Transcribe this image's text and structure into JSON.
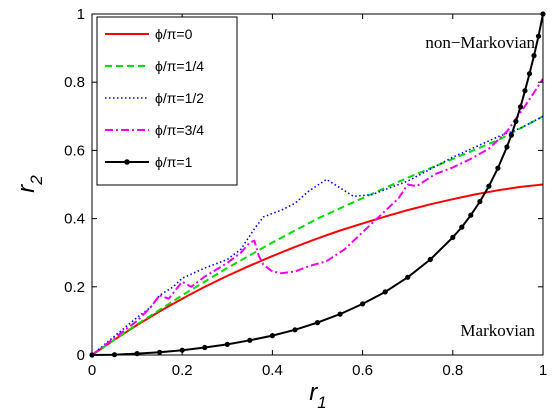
{
  "chart_data": {
    "type": "line",
    "title": "",
    "xlabel": "r₁",
    "ylabel": "r₂",
    "xlim": [
      0,
      1
    ],
    "ylim": [
      0,
      1
    ],
    "xticks": [
      "0",
      "0.2",
      "0.4",
      "0.6",
      "0.8",
      "1"
    ],
    "yticks": [
      "0",
      "0.2",
      "0.4",
      "0.6",
      "0.8",
      "1"
    ],
    "grid": false,
    "legend_position": "top-left",
    "annotations": [
      "non−Markovian",
      "Markovian"
    ],
    "series": [
      {
        "name": "ϕ/π=0",
        "color": "#ff0000",
        "style": "solid",
        "x": [
          0,
          0.05,
          0.1,
          0.15,
          0.2,
          0.25,
          0.3,
          0.35,
          0.4,
          0.45,
          0.5,
          0.55,
          0.6,
          0.65,
          0.7,
          0.75,
          0.8,
          0.85,
          0.9,
          0.95,
          1.0
        ],
        "y": [
          0,
          0.045,
          0.088,
          0.128,
          0.165,
          0.2,
          0.232,
          0.262,
          0.29,
          0.317,
          0.342,
          0.365,
          0.386,
          0.406,
          0.425,
          0.442,
          0.457,
          0.471,
          0.483,
          0.493,
          0.5
        ]
      },
      {
        "name": "ϕ/π=1/4",
        "color": "#00dd00",
        "style": "dashed",
        "x": [
          0,
          0.1,
          0.2,
          0.3,
          0.4,
          0.5,
          0.6,
          0.7,
          0.8,
          0.9,
          1.0
        ],
        "y": [
          0,
          0.09,
          0.175,
          0.255,
          0.33,
          0.4,
          0.46,
          0.52,
          0.575,
          0.63,
          0.7
        ]
      },
      {
        "name": "ϕ/π=1/2",
        "color": "#0000ff",
        "style": "dotted",
        "x": [
          0,
          0.05,
          0.1,
          0.13,
          0.15,
          0.18,
          0.2,
          0.25,
          0.3,
          0.33,
          0.36,
          0.38,
          0.42,
          0.45,
          0.48,
          0.52,
          0.55,
          0.58,
          0.62,
          0.65,
          0.7,
          0.75,
          0.8,
          0.85,
          0.9,
          0.95,
          1.0
        ],
        "y": [
          0,
          0.055,
          0.11,
          0.14,
          0.175,
          0.2,
          0.225,
          0.255,
          0.28,
          0.31,
          0.37,
          0.405,
          0.425,
          0.445,
          0.48,
          0.515,
          0.49,
          0.465,
          0.47,
          0.485,
          0.51,
          0.545,
          0.58,
          0.61,
          0.64,
          0.665,
          0.7
        ]
      },
      {
        "name": "ϕ/π=3/4",
        "color": "#ee00ee",
        "style": "dashdot",
        "x": [
          0,
          0.05,
          0.1,
          0.13,
          0.15,
          0.17,
          0.2,
          0.22,
          0.25,
          0.3,
          0.33,
          0.35,
          0.36,
          0.37,
          0.38,
          0.4,
          0.42,
          0.45,
          0.48,
          0.52,
          0.56,
          0.6,
          0.64,
          0.68,
          0.7,
          0.72,
          0.76,
          0.8,
          0.84,
          0.88,
          0.92,
          0.96,
          1.0
        ],
        "y": [
          0,
          0.05,
          0.1,
          0.14,
          0.175,
          0.165,
          0.215,
          0.2,
          0.23,
          0.27,
          0.3,
          0.33,
          0.335,
          0.29,
          0.265,
          0.245,
          0.24,
          0.245,
          0.26,
          0.275,
          0.31,
          0.36,
          0.41,
          0.46,
          0.5,
          0.495,
          0.53,
          0.55,
          0.575,
          0.605,
          0.655,
          0.73,
          0.81
        ]
      },
      {
        "name": "ϕ/π=1",
        "color": "#000000",
        "style": "solid-marker",
        "x": [
          0,
          0.05,
          0.1,
          0.15,
          0.2,
          0.25,
          0.3,
          0.35,
          0.4,
          0.45,
          0.5,
          0.55,
          0.6,
          0.65,
          0.7,
          0.75,
          0.8,
          0.82,
          0.84,
          0.86,
          0.88,
          0.9,
          0.92,
          0.93,
          0.94,
          0.95,
          0.96,
          0.97,
          0.98,
          0.99,
          1.0
        ],
        "y": [
          0,
          0.001,
          0.004,
          0.008,
          0.014,
          0.022,
          0.031,
          0.043,
          0.057,
          0.074,
          0.095,
          0.12,
          0.15,
          0.185,
          0.228,
          0.28,
          0.345,
          0.375,
          0.41,
          0.45,
          0.495,
          0.548,
          0.61,
          0.645,
          0.685,
          0.728,
          0.775,
          0.825,
          0.878,
          0.935,
          1.0
        ]
      }
    ]
  }
}
